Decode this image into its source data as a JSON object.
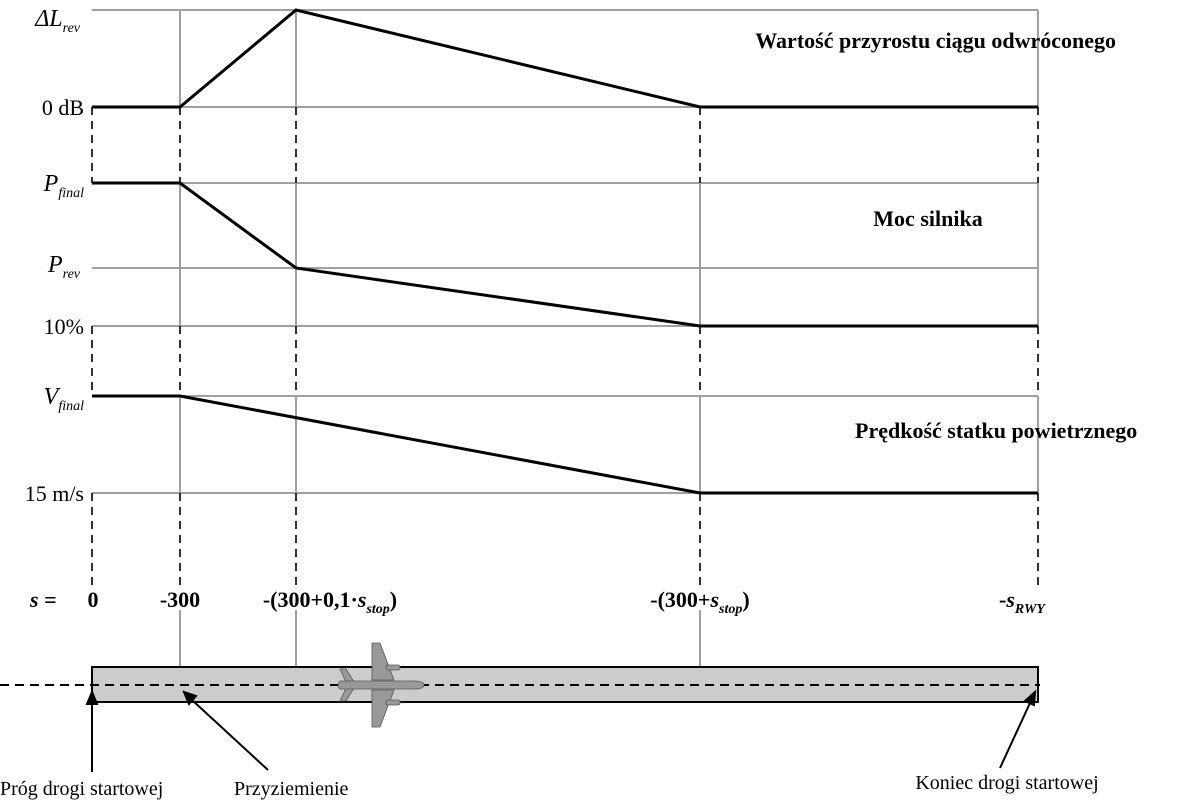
{
  "panels": {
    "top": {
      "title": "Wartość przyrostu ciągu odwróconego",
      "y_upper_sym": "ΔL",
      "y_upper_sub": "rev",
      "y_lower": "0 dB"
    },
    "middle": {
      "title": "Moc silnika",
      "y_upper_sym": "P",
      "y_upper_sub": "final",
      "y_mid_sym": "P",
      "y_mid_sub": "rev",
      "y_lower": "10%"
    },
    "bottom": {
      "title": "Prędkość statku powietrznego",
      "y_upper_sym": "V",
      "y_upper_sub": "final",
      "y_lower": "15 m/s"
    }
  },
  "s_axis": {
    "prefix": "s =",
    "ticks": {
      "t0": "0",
      "t1": "-300",
      "t2_a": "-(300+0,1·",
      "t2_s": "s",
      "t2_sub": "stop",
      "t2_b": ")",
      "t3_a": "-(300+",
      "t3_s": "s",
      "t3_sub": "stop",
      "t3_b": ")",
      "t4_a": "-",
      "t4_s": "s",
      "t4_sub": "RWY"
    }
  },
  "runway": {
    "label_threshold": "Próg drogi startowej",
    "label_touchdown": "Przyziemienie",
    "label_end": "Koniec drogi startowej"
  },
  "colors": {
    "line": "#000000",
    "grid": "#a0a0a0",
    "runway_fill": "#cccccc",
    "aircraft": "#999999"
  },
  "icons": {
    "aircraft": "airplane-icon"
  }
}
